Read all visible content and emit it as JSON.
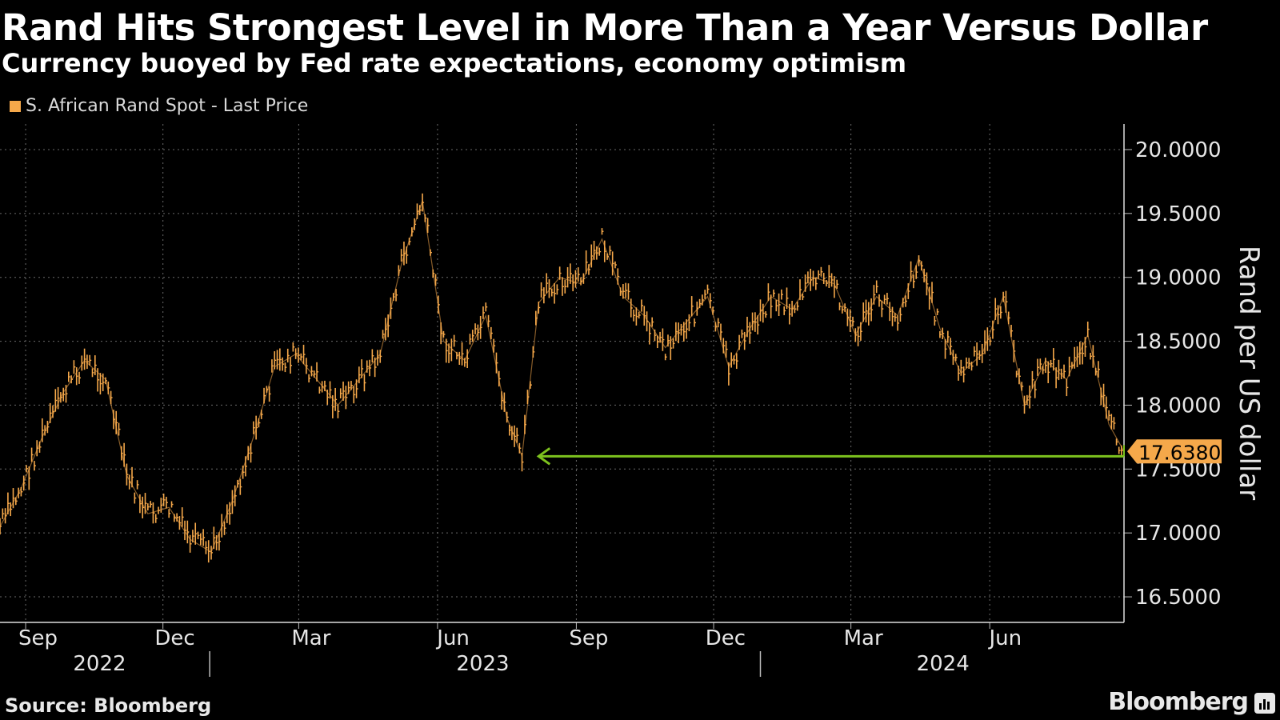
{
  "header": {
    "title": "Rand Hits Strongest Level in More Than a Year Versus Dollar",
    "subtitle": "Currency buoyed by Fed rate expectations, economy optimism"
  },
  "footer": {
    "source": "Source: Bloomberg",
    "brand": "Bloomberg"
  },
  "colors": {
    "series": "#f5a84a",
    "arrow": "#7dc21e",
    "grid": "#6a6a6a",
    "background": "#000000"
  },
  "icons": {
    "brand": "bar-chart-icon"
  },
  "chart_data": {
    "type": "line",
    "title": "Rand Hits Strongest Level in More Than a Year Versus Dollar",
    "subtitle": "Currency buoyed by Fed rate expectations, economy optimism",
    "xlabel": "",
    "ylabel": "Rand per US dollar",
    "ylim": [
      16.3,
      20.2
    ],
    "y_ticks": [
      {
        "value": 16.5,
        "label": "16.5000"
      },
      {
        "value": 17.0,
        "label": "17.0000"
      },
      {
        "value": 17.5,
        "label": "17.5000"
      },
      {
        "value": 18.0,
        "label": "18.0000"
      },
      {
        "value": 18.5,
        "label": "18.5000"
      },
      {
        "value": 19.0,
        "label": "19.0000"
      },
      {
        "value": 19.5,
        "label": "19.5000"
      },
      {
        "value": 20.0,
        "label": "20.0000"
      }
    ],
    "xlim": [
      "2022-08-15",
      "2024-08-29"
    ],
    "x_ticks": [
      {
        "date": "2022-09-01",
        "label": "Sep"
      },
      {
        "date": "2022-12-01",
        "label": "Dec"
      },
      {
        "date": "2023-03-01",
        "label": "Mar"
      },
      {
        "date": "2023-06-01",
        "label": "Jun"
      },
      {
        "date": "2023-09-01",
        "label": "Sep"
      },
      {
        "date": "2023-12-01",
        "label": "Dec"
      },
      {
        "date": "2024-03-01",
        "label": "Mar"
      },
      {
        "date": "2024-06-01",
        "label": "Jun"
      }
    ],
    "year_labels": [
      {
        "label": "2022",
        "center": "2022-10-20"
      },
      {
        "label": "2023",
        "center": "2023-07-01"
      },
      {
        "label": "2024",
        "center": "2024-05-01"
      }
    ],
    "year_dividers": [
      "2023-01-01",
      "2024-01-01"
    ],
    "grid": true,
    "legend_position": "top-left",
    "series": [
      {
        "name": "S. African Rand Spot - Last Price",
        "x": [
          "2022-08-15",
          "2022-08-29",
          "2022-09-12",
          "2022-09-26",
          "2022-10-10",
          "2022-10-24",
          "2022-11-07",
          "2022-11-21",
          "2022-12-05",
          "2022-12-19",
          "2023-01-02",
          "2023-01-16",
          "2023-01-30",
          "2023-02-13",
          "2023-02-27",
          "2023-03-13",
          "2023-03-27",
          "2023-04-10",
          "2023-04-24",
          "2023-05-08",
          "2023-05-22",
          "2023-06-05",
          "2023-06-19",
          "2023-07-03",
          "2023-07-17",
          "2023-07-27",
          "2023-08-07",
          "2023-08-21",
          "2023-09-04",
          "2023-09-18",
          "2023-10-02",
          "2023-10-16",
          "2023-10-30",
          "2023-11-13",
          "2023-11-27",
          "2023-12-11",
          "2023-12-25",
          "2024-01-08",
          "2024-01-22",
          "2024-02-05",
          "2024-02-19",
          "2024-03-04",
          "2024-03-18",
          "2024-04-01",
          "2024-04-15",
          "2024-04-29",
          "2024-05-13",
          "2024-05-27",
          "2024-06-10",
          "2024-06-24",
          "2024-07-08",
          "2024-07-22",
          "2024-08-05",
          "2024-08-19",
          "2024-08-29"
        ],
        "y": [
          17.05,
          17.35,
          17.75,
          18.1,
          18.35,
          18.2,
          17.45,
          17.15,
          17.2,
          16.95,
          16.85,
          17.25,
          17.75,
          18.3,
          18.4,
          18.2,
          18.0,
          18.2,
          18.4,
          19.1,
          19.6,
          18.5,
          18.35,
          18.7,
          17.9,
          17.6,
          18.8,
          19.0,
          18.95,
          19.3,
          18.85,
          18.7,
          18.45,
          18.65,
          18.85,
          18.3,
          18.6,
          18.85,
          18.75,
          19.0,
          18.95,
          18.55,
          18.85,
          18.7,
          19.15,
          18.6,
          18.25,
          18.4,
          18.85,
          18.0,
          18.35,
          18.2,
          18.55,
          17.85,
          17.638
        ]
      }
    ],
    "annotations": [
      {
        "type": "last-value-badge",
        "label": "17.6380",
        "value": 17.638
      },
      {
        "type": "arrow",
        "from_date": "2024-08-29",
        "to_date": "2023-08-07",
        "value": 17.6
      }
    ]
  }
}
